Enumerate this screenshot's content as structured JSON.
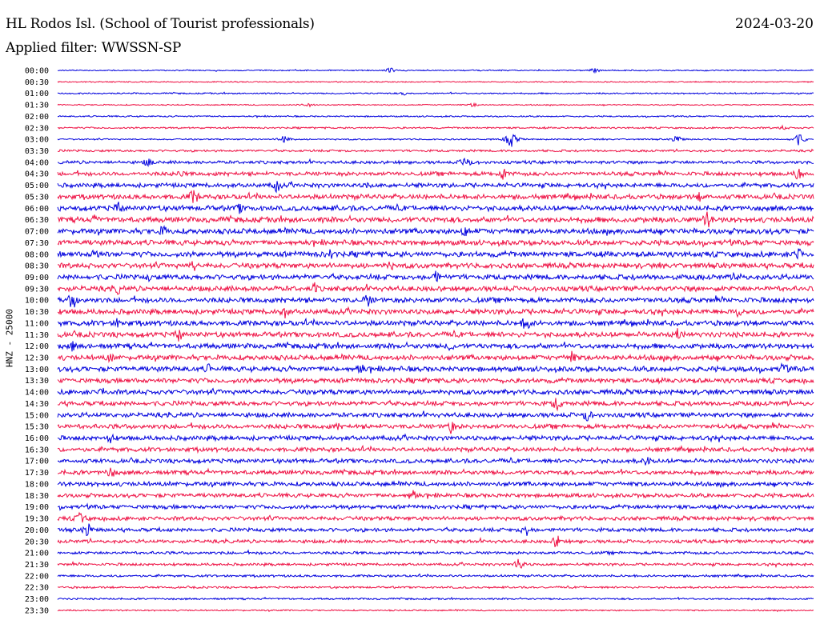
{
  "header": {
    "station": "HL Rodos Isl. (School of Tourist professionals)",
    "date": "2024-03-20",
    "filter": "Applied filter: WWSSN-SP"
  },
  "channel_label": "HNZ - 25000",
  "colors": {
    "even_trace": "#0000dd",
    "odd_trace": "#ee1144",
    "background": "#ffffff",
    "text": "#000000"
  },
  "chart_data": {
    "type": "line",
    "ylabel": "HNZ - 25000",
    "trace_labels": [
      "00:00",
      "00:30",
      "01:00",
      "01:30",
      "02:00",
      "02:30",
      "03:00",
      "03:30",
      "04:00",
      "04:30",
      "05:00",
      "05:30",
      "06:00",
      "06:30",
      "07:00",
      "07:30",
      "08:00",
      "08:30",
      "09:00",
      "09:30",
      "10:00",
      "10:30",
      "11:00",
      "11:30",
      "12:00",
      "12:30",
      "13:00",
      "13:30",
      "14:00",
      "14:30",
      "15:00",
      "15:30",
      "16:00",
      "16:30",
      "17:00",
      "17:30",
      "18:00",
      "18:30",
      "19:00",
      "19:30",
      "20:00",
      "20:30",
      "21:00",
      "21:30",
      "22:00",
      "22:30",
      "23:00",
      "23:30"
    ],
    "noise_level": [
      0.8,
      0.8,
      1.0,
      0.8,
      1.0,
      1.2,
      1.0,
      1.5,
      2.2,
      2.8,
      3.0,
      3.4,
      3.6,
      3.8,
      3.8,
      3.6,
      3.8,
      3.6,
      3.6,
      3.6,
      3.6,
      3.6,
      3.6,
      3.6,
      3.6,
      3.6,
      3.6,
      3.4,
      3.4,
      3.2,
      3.2,
      3.2,
      3.2,
      3.0,
      3.0,
      3.0,
      3.0,
      2.8,
      2.8,
      2.8,
      2.6,
      2.4,
      2.0,
      1.8,
      1.6,
      1.4,
      1.2,
      1.0
    ],
    "events": [
      {
        "trace": 0,
        "t": 0.44,
        "amp": 4
      },
      {
        "trace": 0,
        "t": 0.71,
        "amp": 4
      },
      {
        "trace": 2,
        "t": 0.46,
        "amp": 3
      },
      {
        "trace": 3,
        "t": 0.33,
        "amp": 4
      },
      {
        "trace": 3,
        "t": 0.55,
        "amp": 3
      },
      {
        "trace": 5,
        "t": 0.96,
        "amp": 4
      },
      {
        "trace": 6,
        "t": 0.3,
        "amp": 8
      },
      {
        "trace": 6,
        "t": 0.6,
        "amp": 12
      },
      {
        "trace": 6,
        "t": 0.82,
        "amp": 6
      },
      {
        "trace": 6,
        "t": 0.98,
        "amp": 9
      },
      {
        "trace": 8,
        "t": 0.12,
        "amp": 7
      },
      {
        "trace": 8,
        "t": 0.54,
        "amp": 10
      },
      {
        "trace": 9,
        "t": 0.16,
        "amp": 8
      },
      {
        "trace": 9,
        "t": 0.59,
        "amp": 10
      },
      {
        "trace": 9,
        "t": 0.98,
        "amp": 10
      },
      {
        "trace": 10,
        "t": 0.29,
        "amp": 10
      },
      {
        "trace": 10,
        "t": 0.41,
        "amp": 6
      },
      {
        "trace": 11,
        "t": 0.18,
        "amp": 12
      },
      {
        "trace": 11,
        "t": 0.85,
        "amp": 8
      },
      {
        "trace": 12,
        "t": 0.08,
        "amp": 10
      },
      {
        "trace": 12,
        "t": 0.24,
        "amp": 8
      },
      {
        "trace": 13,
        "t": 0.05,
        "amp": 8
      },
      {
        "trace": 13,
        "t": 0.86,
        "amp": 12
      },
      {
        "trace": 14,
        "t": 0.14,
        "amp": 10
      },
      {
        "trace": 14,
        "t": 0.54,
        "amp": 10
      },
      {
        "trace": 16,
        "t": 0.05,
        "amp": 10
      },
      {
        "trace": 16,
        "t": 0.36,
        "amp": 10
      },
      {
        "trace": 16,
        "t": 0.98,
        "amp": 10
      },
      {
        "trace": 17,
        "t": 0.18,
        "amp": 8
      },
      {
        "trace": 17,
        "t": 0.44,
        "amp": 8
      },
      {
        "trace": 18,
        "t": 0.12,
        "amp": 6
      },
      {
        "trace": 18,
        "t": 0.5,
        "amp": 10
      },
      {
        "trace": 18,
        "t": 0.9,
        "amp": 10
      },
      {
        "trace": 19,
        "t": 0.08,
        "amp": 8
      },
      {
        "trace": 19,
        "t": 0.34,
        "amp": 8
      },
      {
        "trace": 20,
        "t": 0.02,
        "amp": 14
      },
      {
        "trace": 20,
        "t": 0.41,
        "amp": 10
      },
      {
        "trace": 21,
        "t": 0.3,
        "amp": 10
      },
      {
        "trace": 21,
        "t": 0.9,
        "amp": 8
      },
      {
        "trace": 22,
        "t": 0.08,
        "amp": 8
      },
      {
        "trace": 22,
        "t": 0.62,
        "amp": 12
      },
      {
        "trace": 23,
        "t": 0.16,
        "amp": 10
      },
      {
        "trace": 23,
        "t": 0.82,
        "amp": 10
      },
      {
        "trace": 24,
        "t": 0.02,
        "amp": 8
      },
      {
        "trace": 24,
        "t": 0.52,
        "amp": 8
      },
      {
        "trace": 25,
        "t": 0.07,
        "amp": 8
      },
      {
        "trace": 25,
        "t": 0.68,
        "amp": 10
      },
      {
        "trace": 26,
        "t": 0.2,
        "amp": 8
      },
      {
        "trace": 26,
        "t": 0.4,
        "amp": 10
      },
      {
        "trace": 26,
        "t": 0.96,
        "amp": 10
      },
      {
        "trace": 28,
        "t": 0.06,
        "amp": 8
      },
      {
        "trace": 29,
        "t": 0.66,
        "amp": 10
      },
      {
        "trace": 30,
        "t": 0.7,
        "amp": 10
      },
      {
        "trace": 31,
        "t": 0.52,
        "amp": 10
      },
      {
        "trace": 31,
        "t": 0.37,
        "amp": 6
      },
      {
        "trace": 32,
        "t": 0.07,
        "amp": 8
      },
      {
        "trace": 34,
        "t": 0.78,
        "amp": 8
      },
      {
        "trace": 35,
        "t": 0.07,
        "amp": 10
      },
      {
        "trace": 37,
        "t": 0.47,
        "amp": 10
      },
      {
        "trace": 39,
        "t": 0.03,
        "amp": 10
      },
      {
        "trace": 40,
        "t": 0.04,
        "amp": 10
      },
      {
        "trace": 40,
        "t": 0.62,
        "amp": 10
      },
      {
        "trace": 41,
        "t": 0.66,
        "amp": 10
      },
      {
        "trace": 43,
        "t": 0.61,
        "amp": 8
      }
    ]
  }
}
